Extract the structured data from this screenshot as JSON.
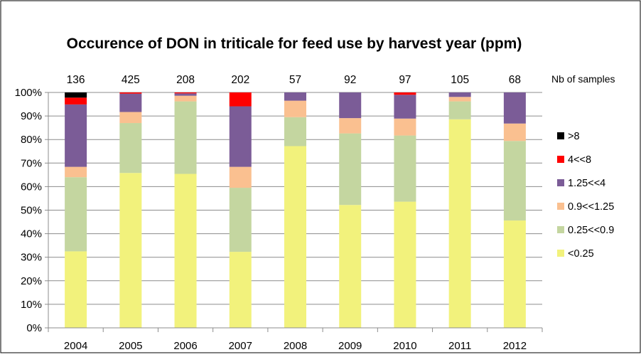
{
  "chart_data": {
    "type": "bar",
    "stacked": true,
    "title": "Occurence of DON in triticale for feed use by harvest year (ppm)",
    "xlabel": "",
    "ylabel": "",
    "ylim": [
      0,
      100
    ],
    "yticks": [
      "0%",
      "10%",
      "20%",
      "30%",
      "40%",
      "50%",
      "60%",
      "70%",
      "80%",
      "90%",
      "100%"
    ],
    "grid": true,
    "legend_position": "right",
    "categories": [
      "2004",
      "2005",
      "2006",
      "2007",
      "2008",
      "2009",
      "2010",
      "2011",
      "2012"
    ],
    "sample_counts_label": "Nb of samples",
    "sample_counts": [
      "136",
      "425",
      "208",
      "202",
      "57",
      "92",
      "97",
      "105",
      "68"
    ],
    "series": [
      {
        "name": "<0.25",
        "color": "#f2f27c",
        "values": [
          32.5,
          65.8,
          65.4,
          32.3,
          77.2,
          52.2,
          53.6,
          88.6,
          45.6
        ]
      },
      {
        "name": "0.25<<0.9",
        "color": "#c4d6a0",
        "values": [
          31.5,
          21.2,
          30.8,
          27.2,
          12.3,
          30.4,
          28.1,
          7.6,
          33.8
        ]
      },
      {
        "name": "0.9<<1.25",
        "color": "#fac090",
        "values": [
          4.4,
          4.7,
          2.4,
          8.9,
          7.0,
          6.5,
          7.2,
          1.9,
          7.4
        ]
      },
      {
        "name": "1.25<<4",
        "color": "#7b5c97",
        "values": [
          26.5,
          7.8,
          1.0,
          25.7,
          3.5,
          10.9,
          10.1,
          1.9,
          13.2
        ]
      },
      {
        "name": "4<<8",
        "color": "#ff0000",
        "values": [
          2.9,
          0.5,
          0.4,
          5.9,
          0,
          0,
          1.0,
          0,
          0
        ]
      },
      {
        "name": ">8",
        "color": "#000000",
        "values": [
          2.2,
          0,
          0,
          0,
          0,
          0,
          0,
          0,
          0
        ]
      }
    ]
  }
}
